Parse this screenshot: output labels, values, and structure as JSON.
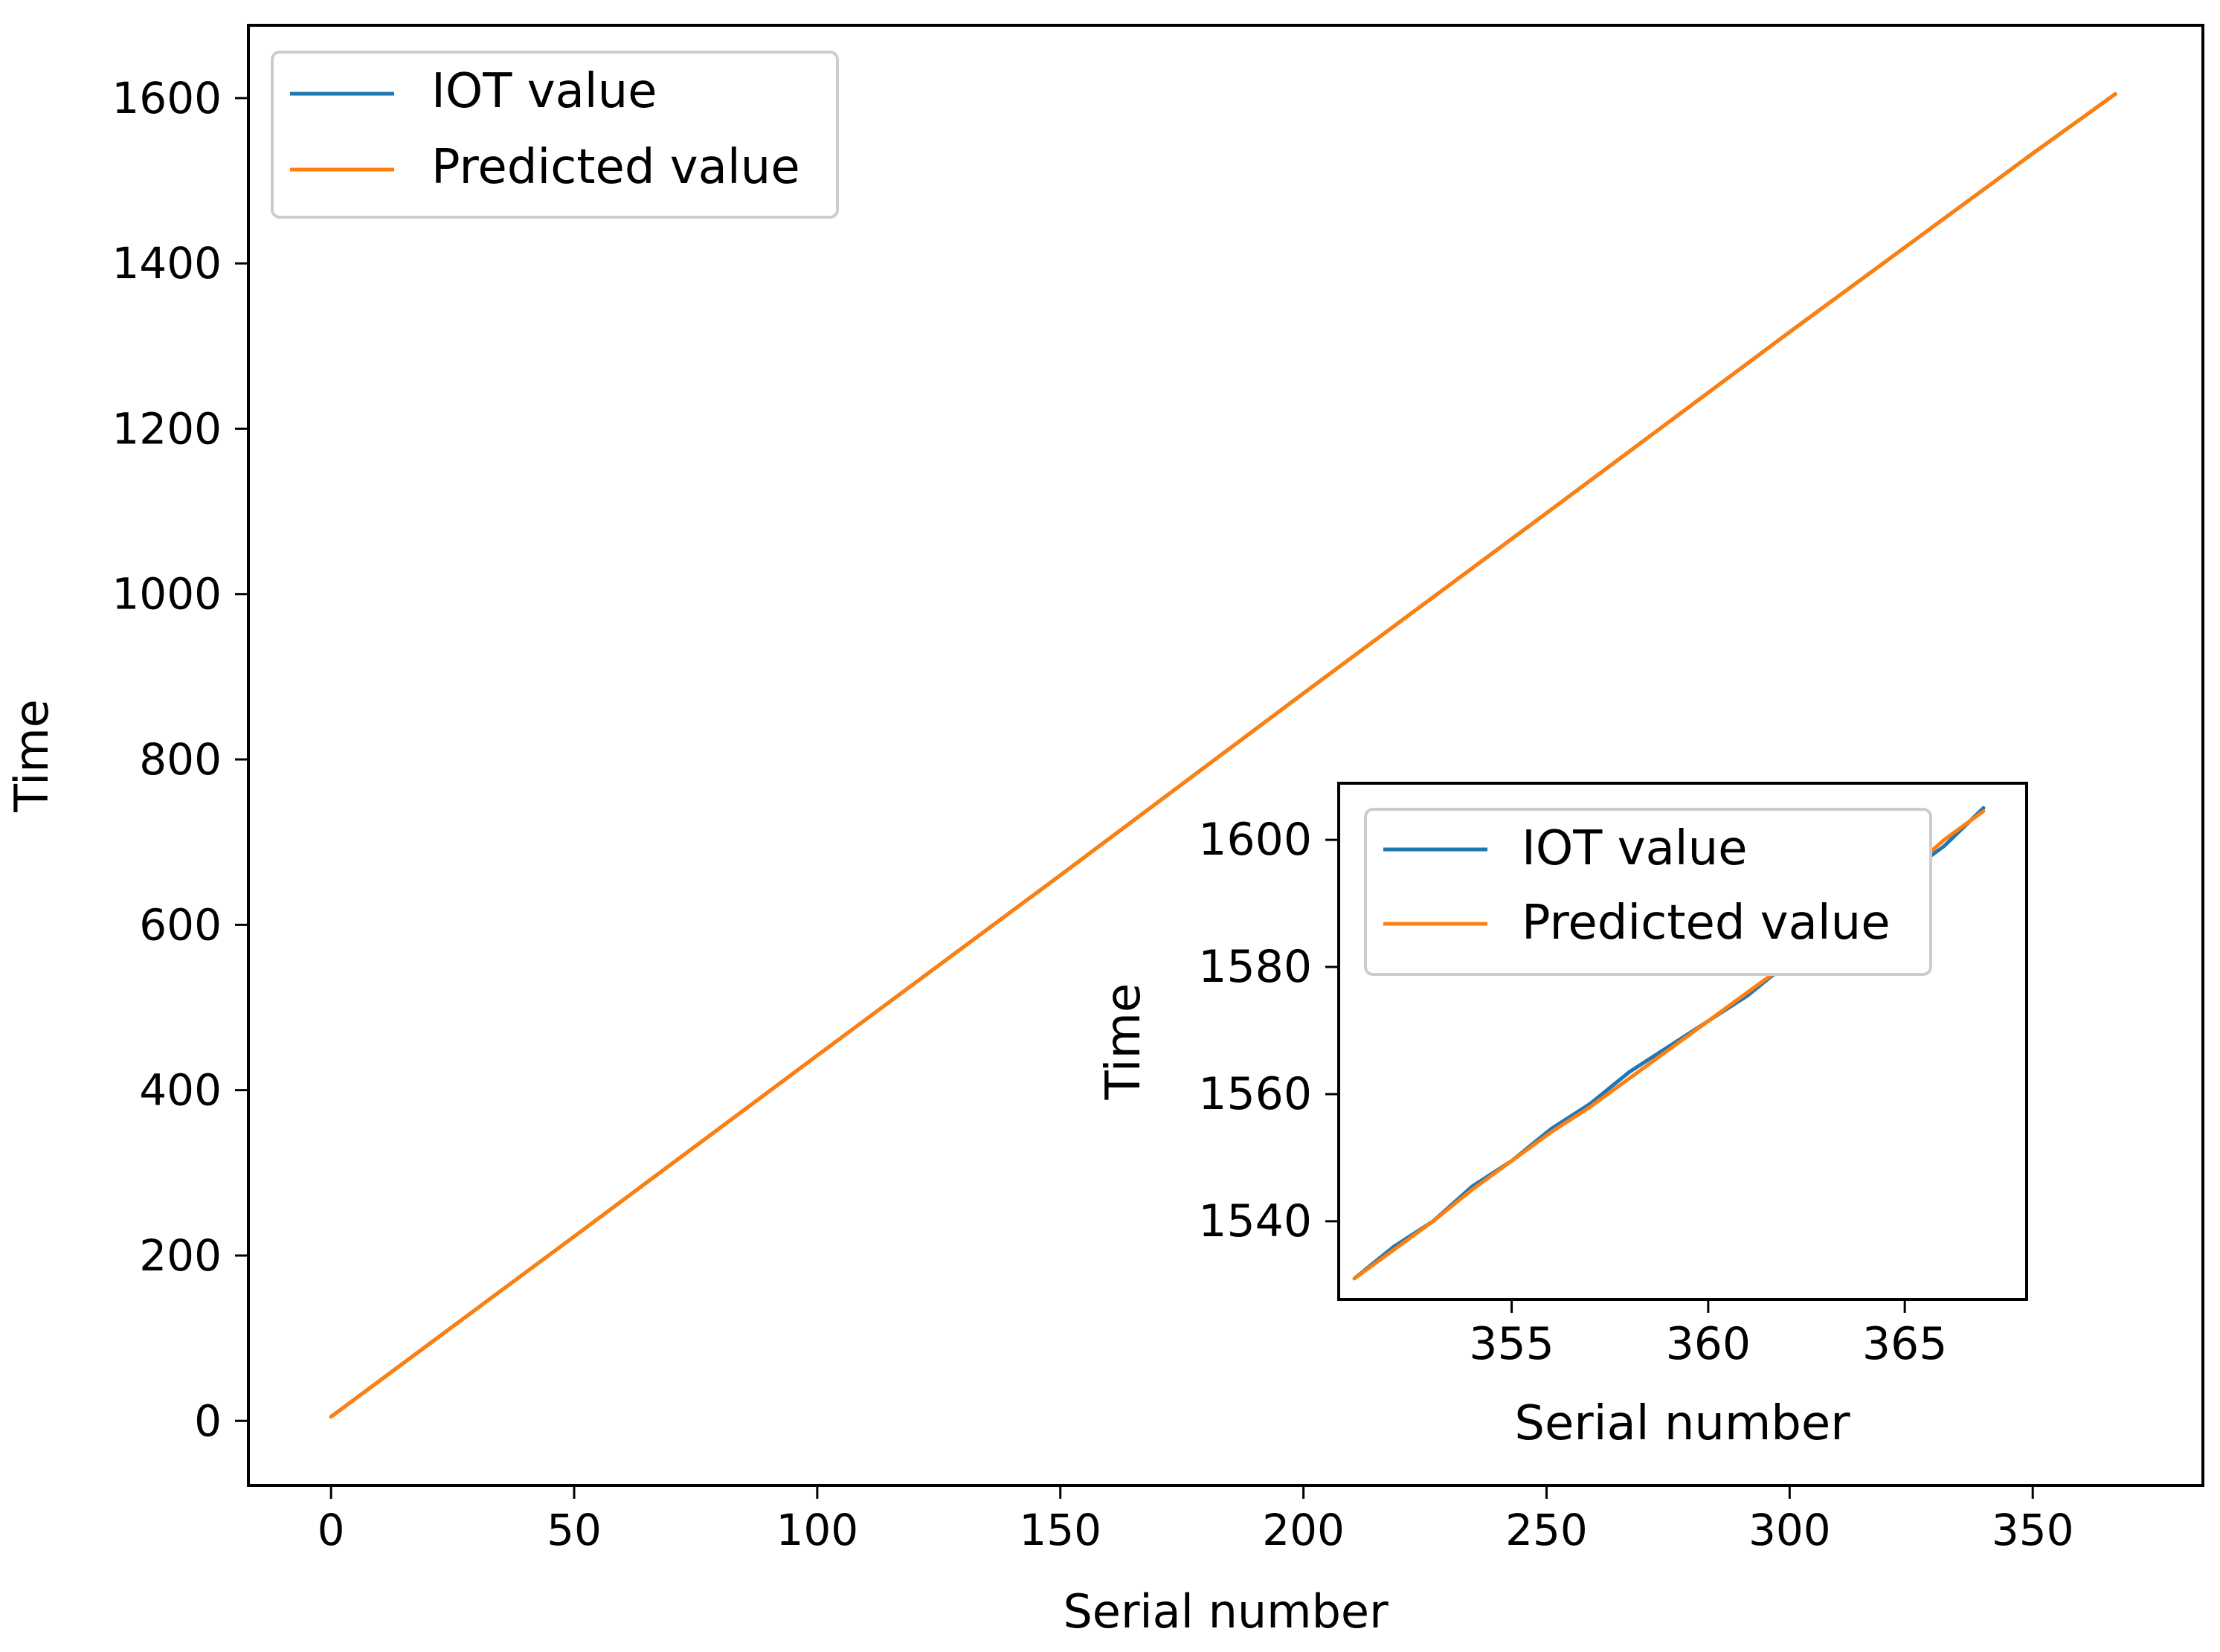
{
  "chart_data": [
    {
      "type": "line",
      "xlabel": "Serial number",
      "ylabel": "Time",
      "xlim": [
        -17,
        385
      ],
      "ylim": [
        -78,
        1688
      ],
      "xticks": [
        0,
        50,
        100,
        150,
        200,
        250,
        300,
        350
      ],
      "yticks": [
        0,
        200,
        400,
        600,
        800,
        1000,
        1200,
        1400,
        1600
      ],
      "legend": "top-left",
      "grid": false,
      "series": [
        {
          "name": "IOT value",
          "color": "#1f77b4",
          "x": [
            0,
            50,
            100,
            150,
            200,
            250,
            300,
            350,
            367
          ],
          "y": [
            5,
            223,
            442,
            660,
            880,
            1098,
            1317,
            1533,
            1605
          ]
        },
        {
          "name": "Predicted value",
          "color": "#ff7f0e",
          "x": [
            0,
            50,
            100,
            150,
            200,
            250,
            300,
            350,
            367
          ],
          "y": [
            5,
            223,
            442,
            660,
            880,
            1098,
            1317,
            1533,
            1605
          ]
        }
      ]
    },
    {
      "type": "line",
      "xlabel": "Serial number",
      "ylabel": "Time",
      "xlim": [
        350.6,
        368.1
      ],
      "ylim": [
        1527.7,
        1608.9
      ],
      "xticks": [
        355,
        360,
        365
      ],
      "yticks": [
        1540,
        1560,
        1580,
        1600
      ],
      "legend": "top-left",
      "grid": false,
      "series": [
        {
          "name": "IOT value",
          "color": "#1f77b4",
          "x": [
            351,
            352,
            353,
            354,
            355,
            356,
            357,
            358,
            359,
            360,
            361,
            362,
            363,
            364,
            365,
            366,
            367
          ],
          "y": [
            1531,
            1536,
            1540,
            1545.5,
            1549.5,
            1554.5,
            1558.5,
            1563.5,
            1567.5,
            1571.5,
            1575.5,
            1580.5,
            1585,
            1590,
            1594.5,
            1599,
            1605
          ]
        },
        {
          "name": "Predicted value",
          "color": "#ff7f0e",
          "x": [
            351,
            352,
            353,
            354,
            355,
            356,
            357,
            358,
            359,
            360,
            361,
            362,
            363,
            364,
            365,
            366,
            367
          ],
          "y": [
            1531,
            1535.5,
            1540,
            1545,
            1549.5,
            1554,
            1558,
            1562.5,
            1567,
            1571.5,
            1576,
            1580.5,
            1585,
            1590,
            1594.5,
            1600,
            1604.5
          ]
        }
      ]
    }
  ]
}
